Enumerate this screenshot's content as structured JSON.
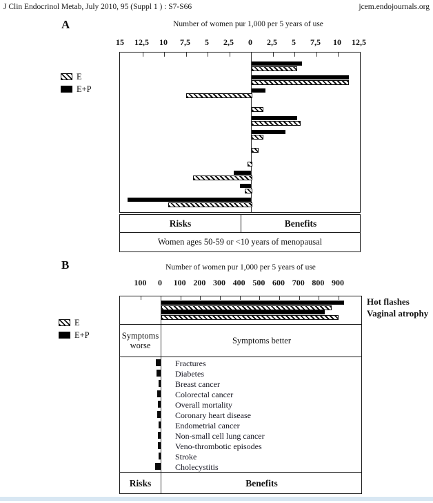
{
  "header": {
    "left": "J Clin Endocrinol Metab, July 2010, 95 (Suppl 1 ) : S7-S66",
    "right": "jcem.endojournals.org"
  },
  "panel_a": {
    "letter": "A",
    "title": "Number of women pur 1,000 per 5 years of use",
    "legend": {
      "e_label": "E",
      "ep_label": "E+P"
    },
    "risks_label": "Risks",
    "benefits_label": "Benefits",
    "footer": "Women ages 50-59 or <10 years of menopausal"
  },
  "panel_b": {
    "letter": "B",
    "title": "Number of women pur 1,000 per 5 years of use",
    "legend": {
      "e_label": "E",
      "ep_label": "E+P"
    },
    "symptoms_worse": "Symptoms worse",
    "symptoms_better": "Symptoms better",
    "risks_label": "Risks",
    "benefits_label": "Benefits"
  },
  "chart_data": [
    {
      "type": "bar",
      "panel": "A",
      "orientation": "horizontal",
      "title": "Number of women pur 1,000 per 5 years of use",
      "unit": "women per 1,000 per 5 years of use",
      "axis": {
        "range": [
          -15,
          12.5
        ],
        "tick_values": [
          -15,
          -12.5,
          -10,
          -7.5,
          -5,
          -2.5,
          0,
          2.5,
          5,
          7.5,
          10,
          12.5
        ],
        "tick_labels": [
          "15",
          "12,5",
          "10",
          "7,5",
          "5",
          "2,5",
          "0",
          "2,5",
          "5",
          "7,5",
          "10",
          "12,5"
        ],
        "negative_side": "Risks",
        "positive_side": "Benefits"
      },
      "legend": [
        {
          "name": "E",
          "style": "hatched"
        },
        {
          "name": "E+P",
          "style": "solid-black"
        }
      ],
      "categories_labeled": false,
      "rows": [
        {
          "ep": 5.8,
          "e": 5.1
        },
        {
          "ep": 11.2,
          "e": 11.0
        },
        {
          "ep": 1.6,
          "e": -7.5
        },
        {
          "ep": 0,
          "e": 1.2
        },
        {
          "ep": 5.2,
          "e": 5.5
        },
        {
          "ep": 3.9,
          "e": 1.2
        },
        {
          "ep": 0,
          "e": 0.65
        },
        {
          "ep": 0,
          "e": -0.4
        },
        {
          "ep": -2.0,
          "e": -6.7
        },
        {
          "ep": -1.3,
          "e": -0.7
        },
        {
          "ep": -14.2,
          "e": -9.5
        }
      ],
      "footer": "Women ages 50-59 or <10 years of menopausal"
    },
    {
      "type": "bar",
      "panel": "B",
      "orientation": "horizontal",
      "title": "Number of women pur 1,000 per 5 years of use",
      "unit": "women per 1,000 per 5 years of use",
      "axis": {
        "range": [
          -200,
          1000
        ],
        "tick_values": [
          -100,
          0,
          100,
          200,
          300,
          400,
          500,
          600,
          700,
          800,
          900
        ],
        "tick_labels": [
          "100",
          "0",
          "100",
          "200",
          "300",
          "400",
          "500",
          "600",
          "700",
          "800",
          "900"
        ],
        "negative_side": "Risks / Symptoms worse",
        "positive_side": "Benefits / Symptoms better"
      },
      "legend": [
        {
          "name": "E",
          "style": "hatched"
        },
        {
          "name": "E+P",
          "style": "solid-black"
        }
      ],
      "symptom_rows": [
        {
          "label": "Hot flashes",
          "ep": 925,
          "e": 855
        },
        {
          "label": "Vaginal atrophy",
          "ep": 825,
          "e": 890
        }
      ],
      "near_zero_items": [
        {
          "label": "Fractures",
          "value": -25
        },
        {
          "label": "Diabetes",
          "value": -20
        },
        {
          "label": "Breast cancer",
          "value": -12
        },
        {
          "label": "Colorectal cancer",
          "value": -17
        },
        {
          "label": "Overall mortality",
          "value": -15
        },
        {
          "label": "Coronary heart disease",
          "value": -17
        },
        {
          "label": "Endometrial cancer",
          "value": -10
        },
        {
          "label": "Non-small cell lung cancer",
          "value": -14
        },
        {
          "label": "Veno-thrombotic episodes",
          "value": -14
        },
        {
          "label": "Stroke",
          "value": -12
        },
        {
          "label": "Cholecystitis",
          "value": -28
        }
      ]
    }
  ]
}
